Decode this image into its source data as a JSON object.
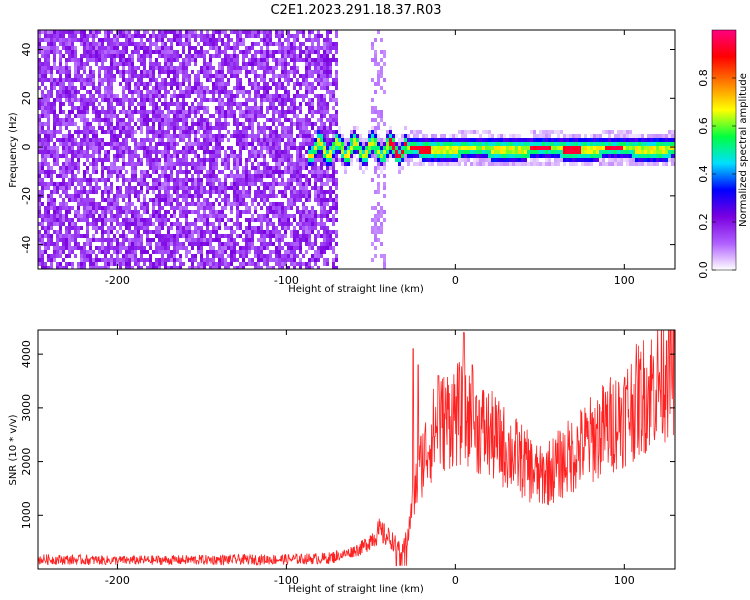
{
  "title": "C2E1.2023.291.18.37.R03",
  "chart_data": [
    {
      "type": "heatmap",
      "name": "spectrogram",
      "xlabel": "Height of straight line (km)",
      "ylabel": "Frequency (Hz)",
      "xlim": [
        -247,
        130
      ],
      "ylim": [
        -50,
        48
      ],
      "x_ticks": [
        -200,
        -100,
        0,
        100
      ],
      "y_ticks": [
        -40,
        -20,
        0,
        20,
        40
      ],
      "noise_region_x": [
        -247,
        -70
      ],
      "signal_band": {
        "x_start": -88,
        "x_end": 130,
        "center_frequency": 0,
        "half_width": 3,
        "peak_amplitude_x": [
          -35,
          -22,
          50,
          68,
          93
        ]
      },
      "colorbar": {
        "label": "Normalized spectral amplitude",
        "range": [
          0,
          1
        ],
        "ticks": [
          0.0,
          0.2,
          0.4,
          0.6,
          0.8
        ],
        "colors": [
          "#ffffff",
          "#b060ff",
          "#7a00e0",
          "#0000ff",
          "#00e0ff",
          "#00ff40",
          "#ffff00",
          "#ff8000",
          "#ff0000",
          "#ff0080"
        ]
      }
    },
    {
      "type": "line",
      "name": "snr",
      "xlabel": "Height of straight line (km)",
      "ylabel": "SNR (10 * v/v)",
      "xlim": [
        -247,
        130
      ],
      "ylim": [
        0,
        4450
      ],
      "x_ticks": [
        -200,
        -100,
        0,
        100
      ],
      "y_ticks": [
        1000,
        2000,
        3000,
        4000
      ],
      "color": "#ff2020",
      "series_envelope": [
        {
          "x": -247,
          "y": 180
        },
        {
          "x": -200,
          "y": 160
        },
        {
          "x": -150,
          "y": 170
        },
        {
          "x": -100,
          "y": 180
        },
        {
          "x": -75,
          "y": 200
        },
        {
          "x": -65,
          "y": 280
        },
        {
          "x": -55,
          "y": 400
        },
        {
          "x": -45,
          "y": 700
        },
        {
          "x": -38,
          "y": 550
        },
        {
          "x": -32,
          "y": 350
        },
        {
          "x": -28,
          "y": 600
        },
        {
          "x": -25,
          "y": 1300
        },
        {
          "x": -20,
          "y": 2000
        },
        {
          "x": -12,
          "y": 2600
        },
        {
          "x": -5,
          "y": 2800
        },
        {
          "x": 0,
          "y": 2900
        },
        {
          "x": 10,
          "y": 2750
        },
        {
          "x": 20,
          "y": 2500
        },
        {
          "x": 30,
          "y": 2250
        },
        {
          "x": 40,
          "y": 2000
        },
        {
          "x": 50,
          "y": 1700
        },
        {
          "x": 60,
          "y": 1900
        },
        {
          "x": 70,
          "y": 2150
        },
        {
          "x": 80,
          "y": 2400
        },
        {
          "x": 90,
          "y": 2650
        },
        {
          "x": 100,
          "y": 2900
        },
        {
          "x": 110,
          "y": 3200
        },
        {
          "x": 120,
          "y": 3500
        },
        {
          "x": 130,
          "y": 3800
        }
      ],
      "spikes": [
        {
          "x": -25,
          "y": 4100
        },
        {
          "x": -22,
          "y": 3800
        },
        {
          "x": -10,
          "y": 3600
        },
        {
          "x": 5,
          "y": 4400
        },
        {
          "x": 10,
          "y": 3800
        },
        {
          "x": 125,
          "y": 4250
        }
      ]
    }
  ]
}
